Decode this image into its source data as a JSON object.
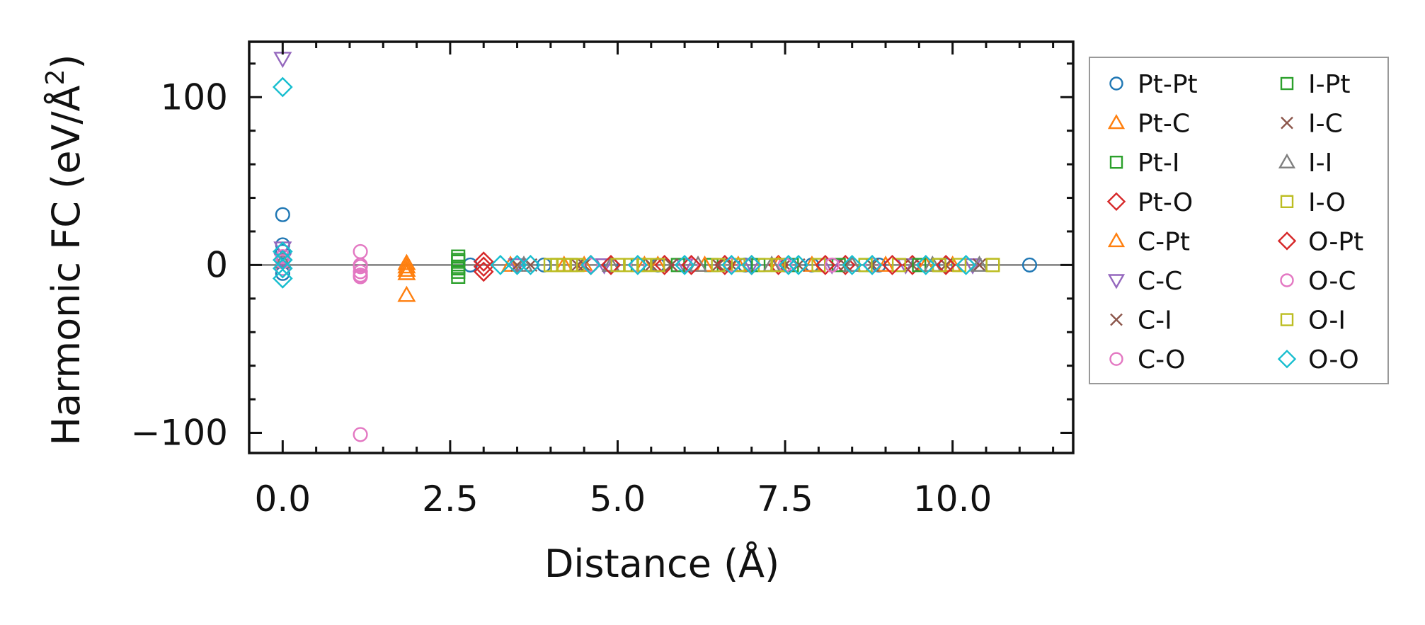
{
  "chart_data": {
    "type": "scatter",
    "title": "",
    "xlabel": "Distance (Å)",
    "ylabel_main": "Harmonic FC (eV/Å",
    "ylabel_sup": "2",
    "ylabel_close": ")",
    "xlim": [
      -0.5,
      11.8
    ],
    "ylim": [
      -112,
      133
    ],
    "xticks": [
      0.0,
      2.5,
      5.0,
      7.5,
      10.0
    ],
    "xtick_labels": [
      "0.0",
      "2.5",
      "5.0",
      "7.5",
      "10.0"
    ],
    "yticks": [
      -100,
      0,
      100
    ],
    "ytick_labels": [
      "−100",
      "0",
      "100"
    ],
    "grid": false,
    "legend_position": "outside-right",
    "legend_columns": 2,
    "zero_line": true,
    "series": [
      {
        "name": "Pt-Pt",
        "marker": "circle",
        "color": "#1f77b4",
        "x": [
          0.0,
          0.0,
          0.0,
          0.0,
          2.8,
          3.9,
          4.9,
          5.6,
          6.9,
          7.9,
          8.9,
          9.9,
          11.15
        ],
        "y": [
          30,
          12,
          8,
          -5,
          0,
          0,
          0,
          0,
          0,
          0,
          0,
          0,
          0
        ]
      },
      {
        "name": "Pt-C",
        "marker": "triangle-up",
        "color": "#ff7f0e",
        "x": [
          1.85,
          1.85,
          1.85,
          3.4,
          4.5,
          5.6,
          6.8,
          7.9,
          9.0,
          10.0
        ],
        "y": [
          1,
          -5,
          -18,
          0,
          0,
          0,
          0,
          0,
          0,
          0
        ]
      },
      {
        "name": "Pt-I",
        "marker": "square",
        "color": "#2ca02c",
        "x": [
          2.62,
          2.62,
          2.62,
          2.62,
          2.62,
          4.1,
          5.3,
          6.4,
          7.6,
          8.7,
          9.8
        ],
        "y": [
          5,
          2,
          -1,
          -4,
          -7,
          0,
          0,
          0,
          0,
          0,
          0
        ]
      },
      {
        "name": "Pt-O",
        "marker": "diamond",
        "color": "#d62728",
        "x": [
          3.0,
          3.0,
          4.6,
          5.7,
          6.6,
          7.4,
          8.4,
          9.4
        ],
        "y": [
          2,
          -4,
          0,
          0,
          0,
          0,
          0,
          0
        ]
      },
      {
        "name": "C-Pt",
        "marker": "triangle-up",
        "color": "#ff7f0e",
        "x": [
          1.85,
          1.85,
          4.2,
          5.4,
          6.3,
          7.4,
          8.5,
          9.6
        ],
        "y": [
          -1,
          -3,
          0,
          0,
          0,
          0,
          0,
          0
        ]
      },
      {
        "name": "C-C",
        "marker": "triangle-down",
        "color": "#9467bd",
        "x": [
          0.0,
          0.0,
          0.0,
          3.5,
          4.8,
          6.0,
          7.0,
          8.2,
          9.3,
          10.3
        ],
        "y": [
          123,
          10,
          3,
          0,
          0,
          0,
          0,
          0,
          0,
          0
        ]
      },
      {
        "name": "C-I",
        "marker": "x",
        "color": "#8c564b",
        "x": [
          3.5,
          4.5,
          5.5,
          6.5,
          7.5,
          8.4,
          9.4,
          10.4
        ],
        "y": [
          0,
          0,
          0,
          0,
          0,
          0,
          0,
          0
        ]
      },
      {
        "name": "C-O",
        "marker": "circle",
        "color": "#e377c2",
        "x": [
          0.0,
          0.0,
          1.16,
          1.16,
          1.16,
          1.16,
          1.16,
          4.6,
          6.1,
          7.5,
          8.8
        ],
        "y": [
          5,
          -2,
          8,
          -1,
          -4,
          -7,
          -101,
          0,
          0,
          0,
          0
        ]
      },
      {
        "name": "I-Pt",
        "marker": "square",
        "color": "#2ca02c",
        "x": [
          2.62,
          2.62,
          4.3,
          5.9,
          7.1,
          8.3,
          9.5
        ],
        "y": [
          -2,
          3,
          0,
          0,
          0,
          0,
          0
        ]
      },
      {
        "name": "I-C",
        "marker": "x",
        "color": "#8c564b",
        "x": [
          3.7,
          4.4,
          5.8,
          6.7,
          7.7,
          8.8,
          9.9
        ],
        "y": [
          0,
          0,
          0,
          0,
          0,
          0,
          0
        ]
      },
      {
        "name": "I-I",
        "marker": "triangle-up",
        "color": "#7f7f7f",
        "x": [
          0.0,
          3.6,
          4.9,
          6.2,
          7.3,
          8.5,
          9.7,
          10.4
        ],
        "y": [
          2,
          0,
          0,
          0,
          0,
          0,
          0,
          0
        ]
      },
      {
        "name": "I-O",
        "marker": "square",
        "color": "#bcbd22",
        "x": [
          4.0,
          4.2,
          4.4,
          5.2,
          5.6,
          6.8,
          7.2,
          8.0,
          9.2,
          10.1,
          10.6
        ],
        "y": [
          0,
          0,
          0,
          0,
          0,
          0,
          0,
          0,
          0,
          0,
          0
        ]
      },
      {
        "name": "O-Pt",
        "marker": "diamond",
        "color": "#d62728",
        "x": [
          3.0,
          4.9,
          6.1,
          7.0,
          8.1,
          9.1,
          9.9
        ],
        "y": [
          -1,
          0,
          0,
          0,
          0,
          0,
          0
        ]
      },
      {
        "name": "O-C",
        "marker": "circle",
        "color": "#e377c2",
        "x": [
          0.0,
          1.16,
          1.16,
          4.6,
          5.3,
          6.7,
          8.2
        ],
        "y": [
          2,
          0,
          -6,
          0,
          0,
          0,
          0
        ]
      },
      {
        "name": "O-I",
        "marker": "square",
        "color": "#bcbd22",
        "x": [
          4.1,
          4.3,
          5.0,
          5.4,
          6.5,
          7.4,
          8.7,
          9.8,
          10.6
        ],
        "y": [
          0,
          0,
          0,
          0,
          0,
          0,
          0,
          0,
          0
        ]
      },
      {
        "name": "O-O",
        "marker": "diamond",
        "color": "#17becf",
        "x": [
          0.0,
          0.0,
          0.0,
          0.0,
          0.0,
          3.25,
          3.5,
          3.7,
          4.6,
          5.3,
          6.0,
          6.7,
          7.0,
          7.55,
          7.7,
          8.5,
          8.8,
          9.6,
          10.2
        ],
        "y": [
          106,
          8,
          3,
          -2,
          -8,
          0,
          0,
          0,
          0,
          0,
          0,
          0,
          0,
          0,
          0,
          0,
          0,
          0,
          0
        ]
      }
    ]
  }
}
